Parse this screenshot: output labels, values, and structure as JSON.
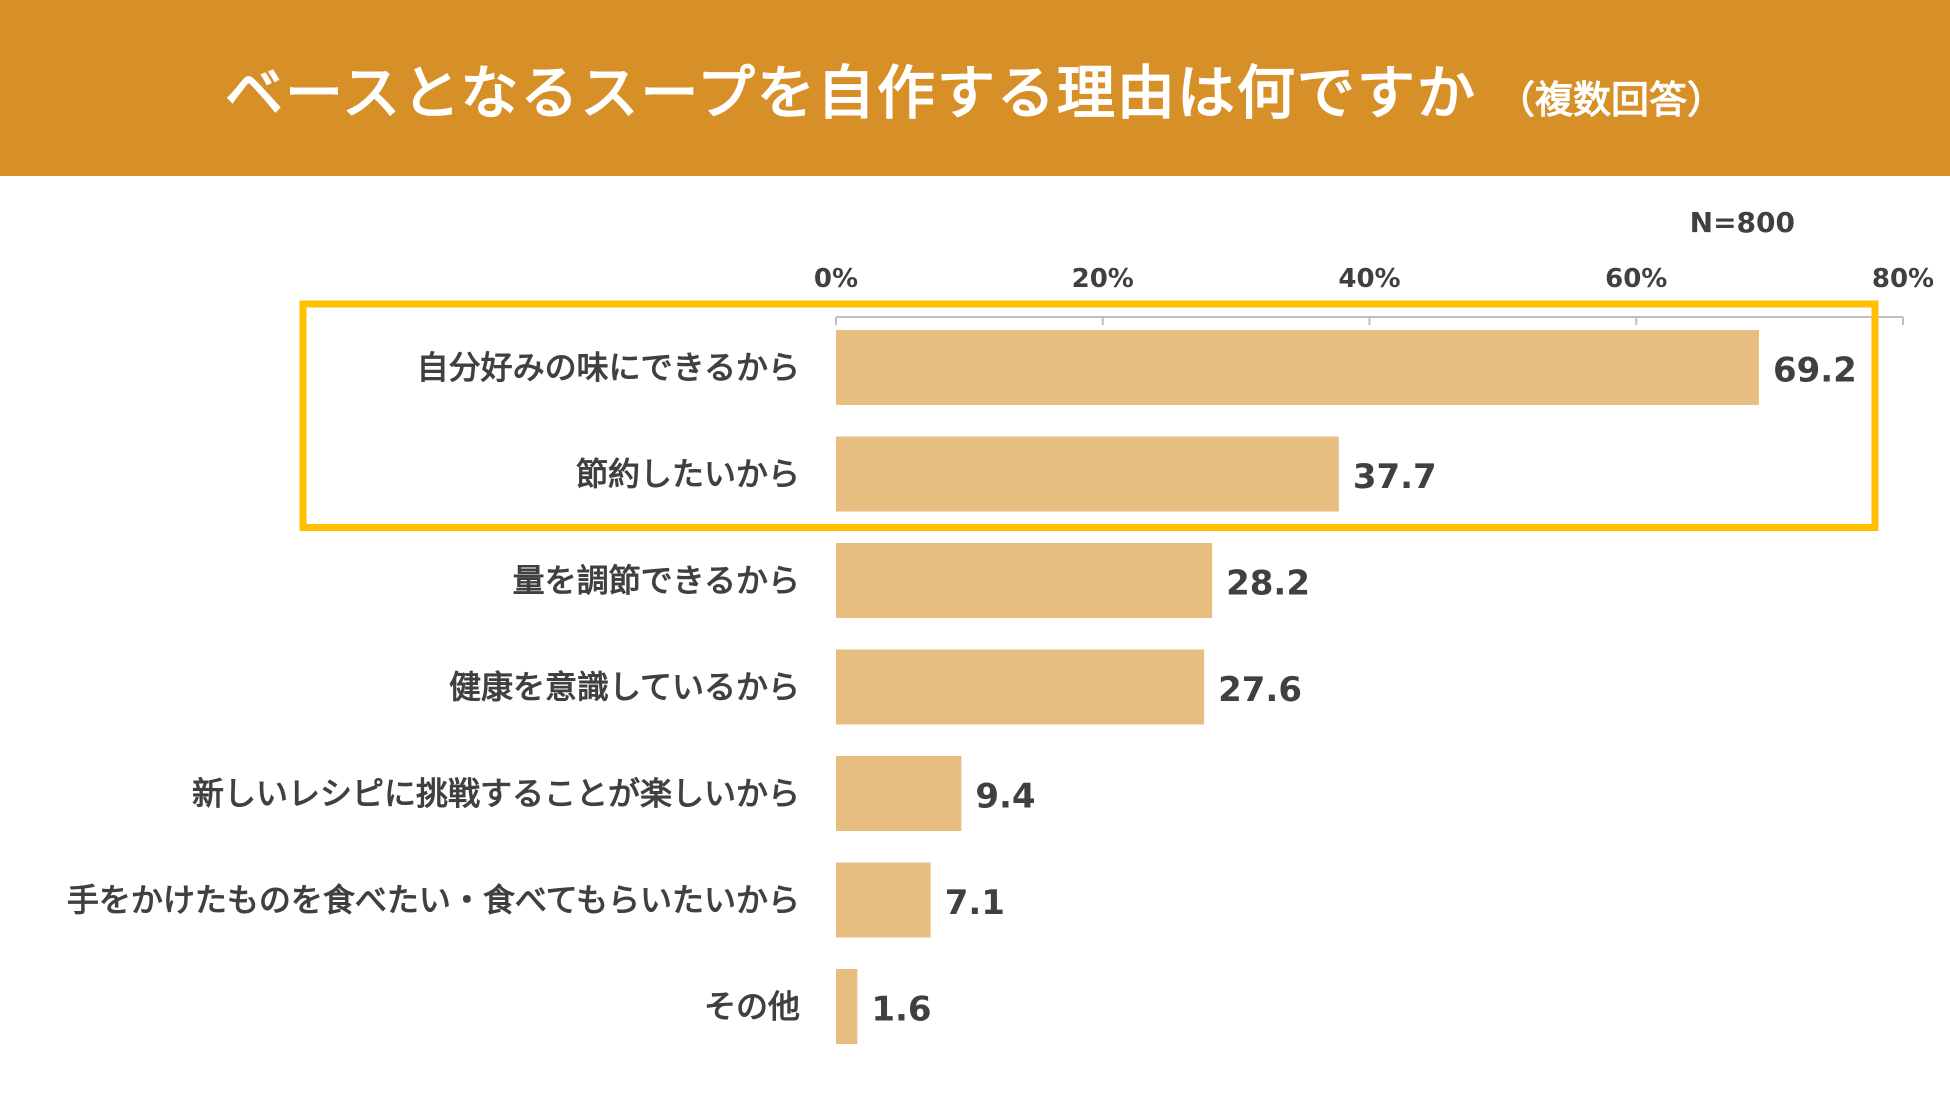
{
  "header": {
    "title": "ベースとなるスープを自作する理由は何ですか",
    "subtitle": "（複数回答）",
    "background_color": "#D78F27"
  },
  "sample_size": "N=800",
  "chart_data": {
    "type": "bar",
    "orientation": "horizontal",
    "title": "ベースとなるスープを自作する理由は何ですか（複数回答）",
    "categories": [
      "自分好みの味にできるから",
      "節約したいから",
      "量を調節できるから",
      "健康を意識しているから",
      "新しいレシピに挑戦することが楽しいから",
      "手をかけたものを食べたい・食べてもらいたいから",
      "その他"
    ],
    "values": [
      69.2,
      37.7,
      28.2,
      27.6,
      9.4,
      7.1,
      1.6
    ],
    "value_labels": [
      "69.2",
      "37.7",
      "28.2",
      "27.6",
      "9.4",
      "7.1",
      "1.6"
    ],
    "xlim": [
      0,
      80
    ],
    "ticks": [
      0,
      20,
      40,
      60,
      80
    ],
    "tick_labels": [
      "0%",
      "20%",
      "40%",
      "60%",
      "80%"
    ],
    "bar_color": "#E8BE80",
    "highlight": {
      "categories": [
        "自分好みの味にできるから",
        "節約したいから"
      ],
      "color": "#FFC000"
    },
    "xlabel": "",
    "ylabel": ""
  }
}
